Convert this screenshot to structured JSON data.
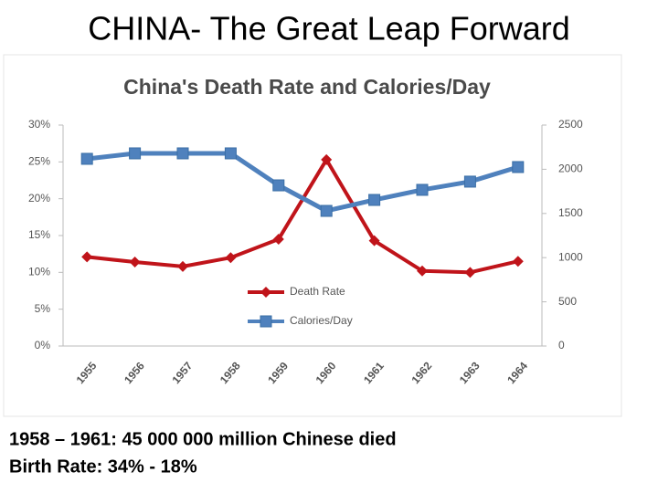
{
  "slide": {
    "title": "CHINA- The Great Leap Forward",
    "notes": [
      "1958 – 1961: 45 000 000 million Chinese died",
      "Birth Rate: 34% - 18%"
    ]
  },
  "chart_data": {
    "type": "line",
    "title": "China's Death Rate and Calories/Day",
    "categories": [
      "1955",
      "1956",
      "1957",
      "1958",
      "1959",
      "1960",
      "1961",
      "1962",
      "1963",
      "1964"
    ],
    "series": [
      {
        "name": "Death Rate",
        "color": "#c0141a",
        "marker": "diamond",
        "axis": "y",
        "values": [
          12.1,
          11.4,
          10.8,
          12.0,
          14.5,
          25.3,
          14.3,
          10.2,
          10.0,
          11.5
        ]
      },
      {
        "name": "Calories/Day",
        "color": "#4f81bd",
        "marker": "square",
        "axis": "y2",
        "values": [
          2118,
          2180,
          2180,
          2180,
          1818,
          1529,
          1653,
          1767,
          1860,
          2025
        ]
      }
    ],
    "ylim": [
      0,
      30
    ],
    "yticks": [
      {
        "value": 0,
        "label": "0%"
      },
      {
        "value": 5,
        "label": "5%"
      },
      {
        "value": 10,
        "label": "10%"
      },
      {
        "value": 15,
        "label": "15%"
      },
      {
        "value": 20,
        "label": "20%"
      },
      {
        "value": 25,
        "label": "25%"
      },
      {
        "value": 30,
        "label": "30%"
      }
    ],
    "y2lim": [
      0,
      2500
    ],
    "y2ticks": [
      0,
      500,
      1000,
      1500,
      2000,
      2500
    ],
    "legend": "center"
  }
}
